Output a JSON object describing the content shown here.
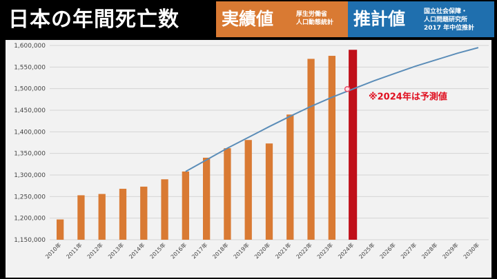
{
  "header": {
    "title": "日本の年間死亡数",
    "actual_label": "実績値",
    "actual_source_lines": [
      "厚生労働省",
      "人口動態統計"
    ],
    "forecast_label": "推計値",
    "forecast_source_lines": [
      "国立社会保障・",
      "人口問題研究所",
      "2017 年中位推計"
    ],
    "actual_color": "#d97a33",
    "forecast_color": "#1f6fae"
  },
  "chart_data": {
    "type": "bar",
    "categories": [
      "2010年",
      "2011年",
      "2012年",
      "2013年",
      "2014年",
      "2015年",
      "2016年",
      "2017年",
      "2018年",
      "2019年",
      "2020年",
      "2021年",
      "2022年",
      "2023年",
      "2024年",
      "2025年",
      "2026年",
      "2027年",
      "2028年",
      "2029年",
      "2030年"
    ],
    "series": [
      {
        "type": "bar",
        "color": "#d97a33",
        "values": [
          1197000,
          1253000,
          1256000,
          1268000,
          1273000,
          1290000,
          1308000,
          1340000,
          1362000,
          1381000,
          1373000,
          1440000,
          1569000,
          1576000,
          null,
          null,
          null,
          null,
          null,
          null,
          null
        ]
      },
      {
        "type": "bar",
        "color": "#c0101a",
        "values": [
          null,
          null,
          null,
          null,
          null,
          null,
          null,
          null,
          null,
          null,
          null,
          null,
          null,
          null,
          1590000,
          null,
          null,
          null,
          null,
          null,
          null
        ]
      },
      {
        "type": "line",
        "color": "#5b8db8",
        "values": [
          null,
          null,
          null,
          null,
          null,
          null,
          1308000,
          1335000,
          1362000,
          1387000,
          1412000,
          1436000,
          1459000,
          1480000,
          1499000,
          1518000,
          1535000,
          1552000,
          1567000,
          1582000,
          1595000
        ]
      }
    ],
    "annotation": "※2024年は予測値",
    "yticks": [
      "1,600,000",
      "1,550,000",
      "1,500,000",
      "1,450,000",
      "1,400,000",
      "1,350,000",
      "1,300,000",
      "1,250,000",
      "1,200,000",
      "1,150,000"
    ],
    "ylim": [
      1150000,
      1600000
    ],
    "grid": true
  }
}
